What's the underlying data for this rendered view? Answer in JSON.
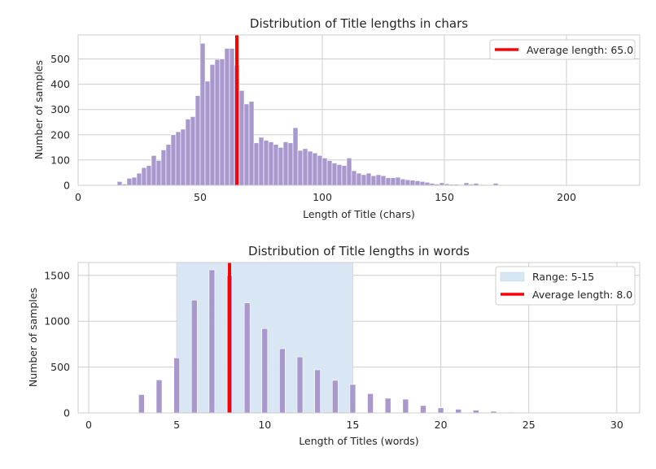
{
  "chart_data": [
    {
      "type": "bar",
      "title": "Distribution of Title lengths in chars",
      "xlabel": "Length of Title (chars)",
      "ylabel": "Number of samples",
      "xlim": [
        0,
        230
      ],
      "ylim": [
        0,
        595
      ],
      "xticks": [
        0,
        50,
        100,
        150,
        200
      ],
      "yticks": [
        0,
        100,
        200,
        300,
        400,
        500
      ],
      "grid": true,
      "legend_position": "top-right",
      "bin_width": 2,
      "bars_x_start": [
        16,
        18,
        20,
        22,
        24,
        26,
        28,
        30,
        32,
        34,
        36,
        38,
        40,
        42,
        44,
        46,
        48,
        50,
        52,
        54,
        56,
        58,
        60,
        62,
        64,
        66,
        68,
        70,
        72,
        74,
        76,
        78,
        80,
        82,
        84,
        86,
        88,
        90,
        92,
        94,
        96,
        98,
        100,
        102,
        104,
        106,
        108,
        110,
        112,
        114,
        116,
        118,
        120,
        122,
        124,
        126,
        128,
        130,
        132,
        134,
        136,
        138,
        140,
        142,
        144,
        146,
        148,
        150,
        152,
        154,
        156,
        158,
        160,
        162,
        164,
        166,
        168,
        170
      ],
      "bars_values": [
        15,
        5,
        28,
        32,
        48,
        70,
        78,
        118,
        98,
        140,
        162,
        200,
        212,
        222,
        262,
        272,
        355,
        562,
        412,
        478,
        498,
        500,
        542,
        542,
        475,
        375,
        322,
        332,
        168,
        190,
        178,
        172,
        162,
        150,
        172,
        168,
        228,
        138,
        145,
        135,
        128,
        118,
        108,
        98,
        88,
        82,
        78,
        108,
        58,
        48,
        42,
        48,
        38,
        42,
        38,
        30,
        30,
        32,
        25,
        22,
        20,
        18,
        15,
        12,
        8,
        5,
        10,
        6,
        4,
        4,
        3,
        10,
        4,
        8,
        3,
        2,
        2,
        8
      ],
      "reference_line": {
        "x": 65.0,
        "color": "#ff0000",
        "label": "Average length: 65.0"
      }
    },
    {
      "type": "bar",
      "title": "Distribution of Title lengths in words",
      "xlabel": "Length of Titles (words)",
      "ylabel": "Number of samples",
      "xlim": [
        -0.6,
        31.3
      ],
      "ylim": [
        0,
        1640
      ],
      "xticks": [
        0,
        5,
        10,
        15,
        20,
        25,
        30
      ],
      "yticks": [
        0,
        500,
        1000,
        1500
      ],
      "grid": true,
      "legend_position": "top-right",
      "bars_x": [
        3,
        4,
        5,
        6,
        7,
        8,
        9,
        10,
        11,
        12,
        13,
        14,
        15,
        16,
        17,
        18,
        19,
        20,
        21,
        22,
        23,
        24
      ],
      "bars_values": [
        200,
        360,
        600,
        1230,
        1560,
        1500,
        1200,
        920,
        700,
        610,
        470,
        355,
        310,
        210,
        160,
        150,
        80,
        55,
        40,
        30,
        18,
        8
      ],
      "range_band": {
        "from": 5,
        "to": 15,
        "color": "#d6e6f2",
        "label": "Range: 5-15"
      },
      "reference_line": {
        "x": 8.0,
        "color": "#ff0000",
        "label": "Average length: 8.0"
      }
    }
  ]
}
